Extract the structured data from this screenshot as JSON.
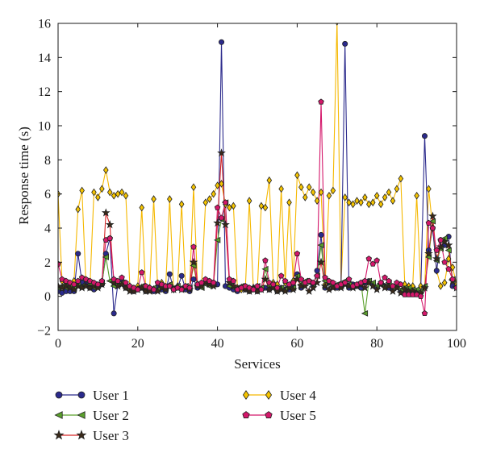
{
  "chart_data": {
    "type": "line",
    "xlabel": "Services",
    "ylabel": "Response time (s)",
    "xlim": [
      0,
      100
    ],
    "ylim": [
      -2,
      16
    ],
    "xticks": [
      "0",
      "20",
      "40",
      "60",
      "80",
      "100"
    ],
    "yticks": [
      "−2",
      "0",
      "2",
      "4",
      "6",
      "8",
      "10",
      "12",
      "14",
      "16"
    ],
    "grid": false,
    "legend_position": "bottom",
    "series": [
      {
        "name": "User 1",
        "color": "#2b2a8c",
        "marker": "circle",
        "markerFill": "#2b2a8c",
        "x": [
          0,
          1,
          2,
          3,
          4,
          5,
          6,
          7,
          8,
          9,
          10,
          11,
          12,
          13,
          14,
          15,
          16,
          17,
          18,
          19,
          20,
          21,
          22,
          23,
          24,
          25,
          26,
          27,
          28,
          29,
          30,
          31,
          32,
          33,
          34,
          35,
          36,
          37,
          38,
          39,
          40,
          41,
          42,
          43,
          44,
          45,
          46,
          47,
          48,
          49,
          50,
          51,
          52,
          53,
          54,
          55,
          56,
          57,
          58,
          59,
          60,
          61,
          62,
          63,
          64,
          65,
          66,
          67,
          68,
          69,
          70,
          71,
          72,
          73,
          74,
          75,
          76,
          77,
          78,
          79,
          80,
          81,
          82,
          83,
          84,
          85,
          86,
          87,
          88,
          89,
          90,
          91,
          92,
          93,
          94,
          95,
          96,
          97,
          98,
          99,
          100
        ],
        "values": [
          0.3,
          0.2,
          0.3,
          0.3,
          0.3,
          2.5,
          0.8,
          0.7,
          0.5,
          0.4,
          0.6,
          0.7,
          2.5,
          3.4,
          -1.0,
          0.7,
          0.9,
          0.5,
          0.4,
          0.3,
          0.4,
          0.5,
          0.3,
          0.4,
          0.3,
          0.5,
          0.4,
          0.3,
          1.3,
          0.4,
          0.5,
          1.2,
          0.4,
          0.3,
          1.0,
          0.5,
          0.6,
          0.8,
          0.7,
          0.8,
          0.7,
          14.9,
          0.6,
          0.5,
          0.4,
          0.3,
          0.5,
          0.4,
          0.3,
          0.4,
          0.3,
          0.4,
          0.5,
          0.4,
          0.6,
          0.3,
          0.5,
          0.4,
          0.4,
          0.6,
          1.3,
          0.5,
          0.8,
          0.9,
          0.6,
          1.5,
          3.6,
          0.5,
          0.8,
          0.6,
          0.5,
          0.7,
          14.8,
          0.5,
          0.7,
          0.6,
          0.5,
          0.8,
          0.9,
          0.7,
          0.5,
          0.8,
          0.6,
          0.5,
          0.4,
          0.6,
          0.3,
          0.4,
          0.2,
          0.3,
          0.3,
          0.2,
          9.4,
          2.7,
          4.0,
          1.5,
          3.3,
          3.0,
          3.5,
          0.6,
          0.5
        ]
      },
      {
        "name": "User 2",
        "color": "#5aa02c",
        "marker": "triangle-left",
        "markerFill": "#5aa02c",
        "x": [
          0,
          1,
          2,
          3,
          4,
          5,
          6,
          7,
          8,
          9,
          10,
          11,
          12,
          13,
          14,
          15,
          16,
          17,
          18,
          19,
          20,
          21,
          22,
          23,
          24,
          25,
          26,
          27,
          28,
          29,
          30,
          31,
          32,
          33,
          34,
          35,
          36,
          37,
          38,
          39,
          40,
          41,
          42,
          43,
          44,
          45,
          46,
          47,
          48,
          49,
          50,
          51,
          52,
          53,
          54,
          55,
          56,
          57,
          58,
          59,
          60,
          61,
          62,
          63,
          64,
          65,
          66,
          67,
          68,
          69,
          70,
          71,
          72,
          73,
          74,
          75,
          76,
          77,
          78,
          79,
          80,
          81,
          82,
          83,
          84,
          85,
          86,
          87,
          88,
          89,
          90,
          91,
          92,
          93,
          94,
          95,
          96,
          97,
          98,
          99,
          100
        ],
        "values": [
          0.5,
          0.6,
          0.5,
          0.6,
          0.5,
          0.7,
          0.6,
          0.6,
          0.7,
          0.5,
          0.6,
          0.8,
          2.3,
          0.9,
          0.6,
          0.7,
          0.8,
          0.5,
          0.4,
          0.4,
          0.5,
          0.6,
          0.5,
          0.4,
          0.5,
          0.4,
          0.6,
          0.5,
          0.7,
          0.5,
          0.6,
          0.5,
          0.6,
          0.5,
          1.8,
          0.6,
          0.5,
          0.7,
          0.6,
          0.7,
          3.3,
          4.5,
          5.5,
          0.6,
          0.5,
          0.5,
          0.6,
          0.5,
          0.4,
          0.5,
          0.6,
          0.5,
          1.6,
          0.6,
          0.5,
          0.4,
          0.5,
          0.4,
          0.6,
          0.5,
          1.2,
          0.7,
          0.9,
          0.8,
          0.7,
          1.2,
          3.0,
          0.9,
          0.8,
          0.6,
          0.7,
          0.6,
          0.9,
          0.7,
          0.6,
          0.7,
          0.8,
          -1.0,
          0.9,
          0.8,
          0.6,
          0.7,
          0.6,
          0.8,
          0.5,
          0.7,
          0.4,
          0.5,
          0.5,
          0.4,
          0.4,
          0.3,
          0.6,
          2.3,
          4.4,
          2.1,
          2.8,
          3.4,
          2.7,
          1.0,
          0.6
        ]
      },
      {
        "name": "User 3",
        "color": "#d62728",
        "marker": "star",
        "markerFill": "#3a2a1a",
        "x": [
          0,
          1,
          2,
          3,
          4,
          5,
          6,
          7,
          8,
          9,
          10,
          11,
          12,
          13,
          14,
          15,
          16,
          17,
          18,
          19,
          20,
          21,
          22,
          23,
          24,
          25,
          26,
          27,
          28,
          29,
          30,
          31,
          32,
          33,
          34,
          35,
          36,
          37,
          38,
          39,
          40,
          41,
          42,
          43,
          44,
          45,
          46,
          47,
          48,
          49,
          50,
          51,
          52,
          53,
          54,
          55,
          56,
          57,
          58,
          59,
          60,
          61,
          62,
          63,
          64,
          65,
          66,
          67,
          68,
          69,
          70,
          71,
          72,
          73,
          74,
          75,
          76,
          77,
          78,
          79,
          80,
          81,
          82,
          83,
          84,
          85,
          86,
          87,
          88,
          89,
          90,
          91,
          92,
          93,
          94,
          95,
          96,
          97,
          98,
          99,
          100
        ],
        "values": [
          0.6,
          0.5,
          0.6,
          0.5,
          0.4,
          0.6,
          0.5,
          0.6,
          0.5,
          0.6,
          0.5,
          0.7,
          4.9,
          4.2,
          0.8,
          0.6,
          0.7,
          0.5,
          0.3,
          0.3,
          0.4,
          0.5,
          0.3,
          0.3,
          0.4,
          0.3,
          0.5,
          0.4,
          0.6,
          0.4,
          0.5,
          0.4,
          0.5,
          0.4,
          2.0,
          0.6,
          0.6,
          0.8,
          0.7,
          0.6,
          4.3,
          8.4,
          4.2,
          0.8,
          0.6,
          0.4,
          0.5,
          0.4,
          0.3,
          0.5,
          0.3,
          0.4,
          1.0,
          0.4,
          0.5,
          0.3,
          0.4,
          0.3,
          0.5,
          0.4,
          1.0,
          0.6,
          0.6,
          0.3,
          0.5,
          0.8,
          2.0,
          0.6,
          0.4,
          0.5,
          0.6,
          0.5,
          0.7,
          0.6,
          0.5,
          0.6,
          0.7,
          0.5,
          0.8,
          0.6,
          0.4,
          0.7,
          0.5,
          0.6,
          0.3,
          0.5,
          0.2,
          0.4,
          0.3,
          0.3,
          0.2,
          0.2,
          0.5,
          2.5,
          4.7,
          2.2,
          2.9,
          3.2,
          3.0,
          0.9,
          0.5
        ]
      },
      {
        "name": "User 4",
        "color": "#f5b800",
        "marker": "diamond",
        "markerFill": "#f5c400",
        "x": [
          0,
          1,
          2,
          3,
          4,
          5,
          6,
          7,
          8,
          9,
          10,
          11,
          12,
          13,
          14,
          15,
          16,
          17,
          18,
          19,
          20,
          21,
          22,
          23,
          24,
          25,
          26,
          27,
          28,
          29,
          30,
          31,
          32,
          33,
          34,
          35,
          36,
          37,
          38,
          39,
          40,
          41,
          42,
          43,
          44,
          45,
          46,
          47,
          48,
          49,
          50,
          51,
          52,
          53,
          54,
          55,
          56,
          57,
          58,
          59,
          60,
          61,
          62,
          63,
          64,
          65,
          66,
          67,
          68,
          69,
          70,
          71,
          72,
          73,
          74,
          75,
          76,
          77,
          78,
          79,
          80,
          81,
          82,
          83,
          84,
          85,
          86,
          87,
          88,
          89,
          90,
          91,
          92,
          93,
          94,
          95,
          96,
          97,
          98,
          99,
          100
        ],
        "values": [
          6.0,
          0.9,
          0.8,
          0.7,
          0.9,
          5.1,
          6.2,
          0.7,
          0.6,
          6.1,
          5.8,
          6.3,
          7.4,
          6.1,
          5.9,
          6.0,
          6.1,
          5.9,
          0.6,
          0.4,
          0.6,
          5.2,
          0.4,
          0.5,
          5.7,
          0.5,
          0.8,
          0.5,
          5.7,
          0.4,
          0.6,
          5.4,
          0.5,
          0.5,
          6.4,
          0.7,
          0.6,
          5.5,
          5.7,
          6.0,
          6.5,
          6.6,
          5.4,
          5.2,
          5.3,
          0.5,
          0.4,
          0.5,
          5.6,
          0.5,
          0.4,
          5.3,
          5.2,
          6.8,
          0.8,
          0.7,
          6.3,
          0.8,
          5.5,
          0.9,
          7.1,
          6.4,
          5.8,
          6.4,
          6.1,
          5.6,
          6.1,
          0.7,
          5.9,
          6.2,
          16.1,
          0.7,
          5.8,
          5.5,
          5.4,
          5.6,
          5.5,
          5.8,
          5.4,
          5.5,
          5.9,
          5.4,
          5.8,
          6.1,
          5.6,
          6.3,
          6.9,
          0.7,
          0.6,
          0.6,
          5.9,
          0.6,
          0.5,
          6.3,
          4.0,
          1.5,
          0.6,
          0.8,
          2.2,
          1.7,
          0.7
        ]
      },
      {
        "name": "User 5",
        "color": "#d4176a",
        "marker": "pentagon",
        "markerFill": "#d4176a",
        "x": [
          0,
          1,
          2,
          3,
          4,
          5,
          6,
          7,
          8,
          9,
          10,
          11,
          12,
          13,
          14,
          15,
          16,
          17,
          18,
          19,
          20,
          21,
          22,
          23,
          24,
          25,
          26,
          27,
          28,
          29,
          30,
          31,
          32,
          33,
          34,
          35,
          36,
          37,
          38,
          39,
          40,
          41,
          42,
          43,
          44,
          45,
          46,
          47,
          48,
          49,
          50,
          51,
          52,
          53,
          54,
          55,
          56,
          57,
          58,
          59,
          60,
          61,
          62,
          63,
          64,
          65,
          66,
          67,
          68,
          69,
          70,
          71,
          72,
          73,
          74,
          75,
          76,
          77,
          78,
          79,
          80,
          81,
          82,
          83,
          84,
          85,
          86,
          87,
          88,
          89,
          90,
          91,
          92,
          93,
          94,
          95,
          96,
          97,
          98,
          99,
          100
        ],
        "values": [
          1.9,
          1.0,
          0.9,
          0.8,
          0.7,
          0.9,
          1.1,
          1.0,
          0.9,
          0.8,
          0.7,
          0.9,
          3.3,
          3.4,
          1.0,
          0.9,
          1.1,
          0.8,
          0.6,
          0.5,
          0.4,
          1.4,
          0.6,
          0.5,
          0.4,
          0.8,
          0.7,
          0.6,
          0.6,
          0.4,
          0.5,
          0.4,
          0.6,
          0.5,
          2.9,
          0.7,
          0.8,
          1.0,
          0.9,
          0.8,
          5.2,
          4.6,
          5.5,
          1.0,
          0.9,
          0.4,
          0.5,
          0.6,
          0.5,
          0.4,
          0.6,
          0.4,
          2.1,
          0.8,
          0.7,
          0.5,
          1.2,
          0.9,
          0.7,
          0.8,
          2.5,
          1.0,
          0.8,
          0.9,
          0.8,
          1.2,
          11.4,
          1.1,
          0.9,
          0.8,
          0.6,
          0.7,
          0.8,
          1.0,
          0.6,
          0.7,
          0.8,
          0.9,
          2.2,
          1.9,
          2.1,
          0.8,
          1.1,
          0.9,
          0.6,
          0.8,
          0.7,
          0.1,
          0.1,
          0.1,
          0.1,
          0.0,
          -1.0,
          4.3,
          4.0,
          2.7,
          3.3,
          2.0,
          1.6,
          1.0,
          0.5
        ]
      }
    ]
  }
}
